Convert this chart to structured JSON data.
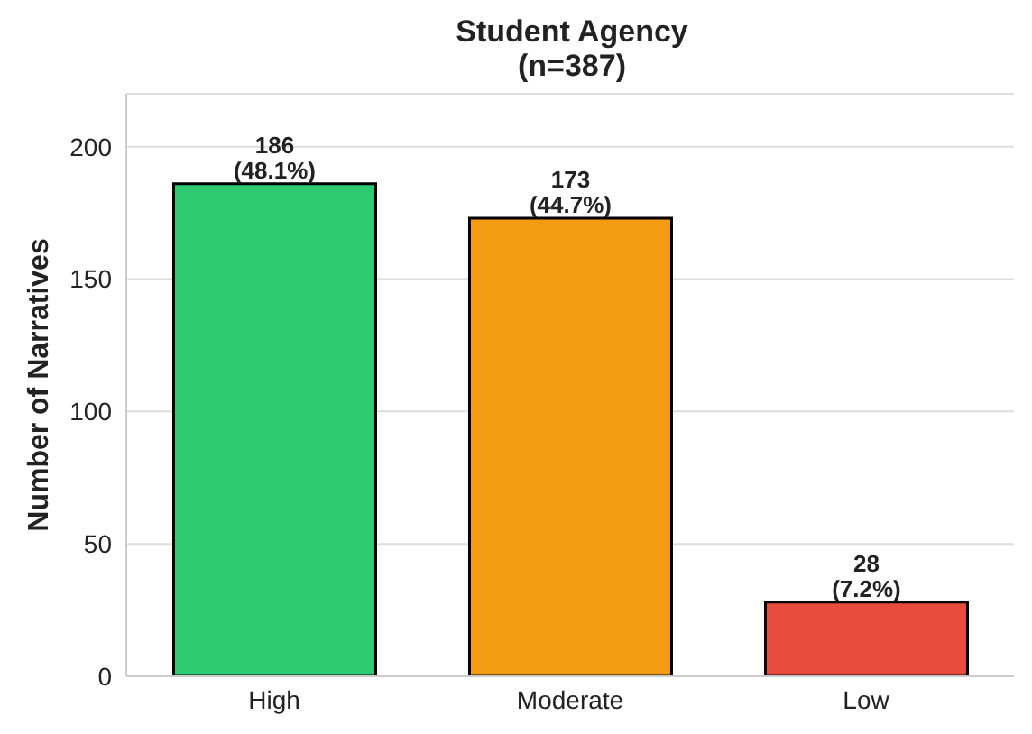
{
  "chart_data": {
    "type": "bar",
    "title": "Student Agency",
    "subtitle": "(n=387)",
    "ylabel": "Number of Narratives",
    "categories": [
      "High",
      "Moderate",
      "Low"
    ],
    "values": [
      186,
      173,
      28
    ],
    "colors": [
      "#2ecc71",
      "#f39c12",
      "#e74c3c"
    ],
    "value_labels": [
      "186\n(48.1%)",
      "173\n(44.7%)",
      "28\n(7.2%)"
    ],
    "ylim": [
      0,
      220
    ],
    "yticks": [
      0,
      50,
      100,
      150,
      200
    ],
    "grid": "y"
  }
}
